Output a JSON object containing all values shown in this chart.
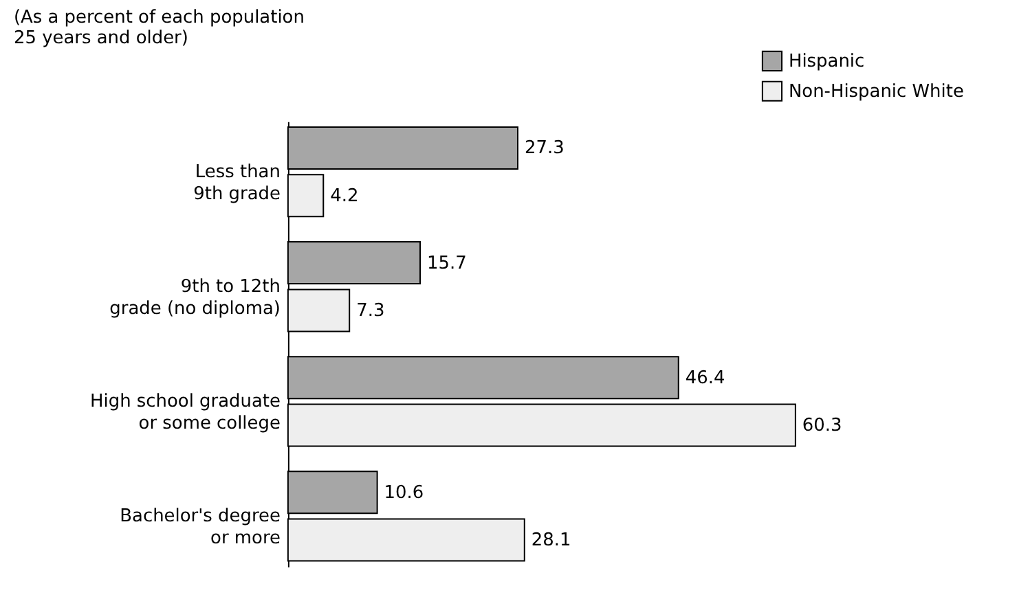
{
  "chart_data": {
    "type": "bar",
    "orientation": "horizontal",
    "title": "(As a percent of each population\n25 years and older)",
    "categories": [
      "Less than\n9th grade",
      "9th to 12th\ngrade (no diploma)",
      "High school graduate\nor some college",
      "Bachelor's degree\nor more"
    ],
    "series": [
      {
        "name": "Hispanic",
        "color": "#a6a6a6",
        "values": [
          27.3,
          15.7,
          46.4,
          10.6
        ]
      },
      {
        "name": "Non-Hispanic White",
        "color": "#eeeeee",
        "values": [
          4.2,
          7.3,
          60.3,
          28.1
        ]
      }
    ],
    "data_labels": true,
    "legend": "top right",
    "grid": false
  }
}
